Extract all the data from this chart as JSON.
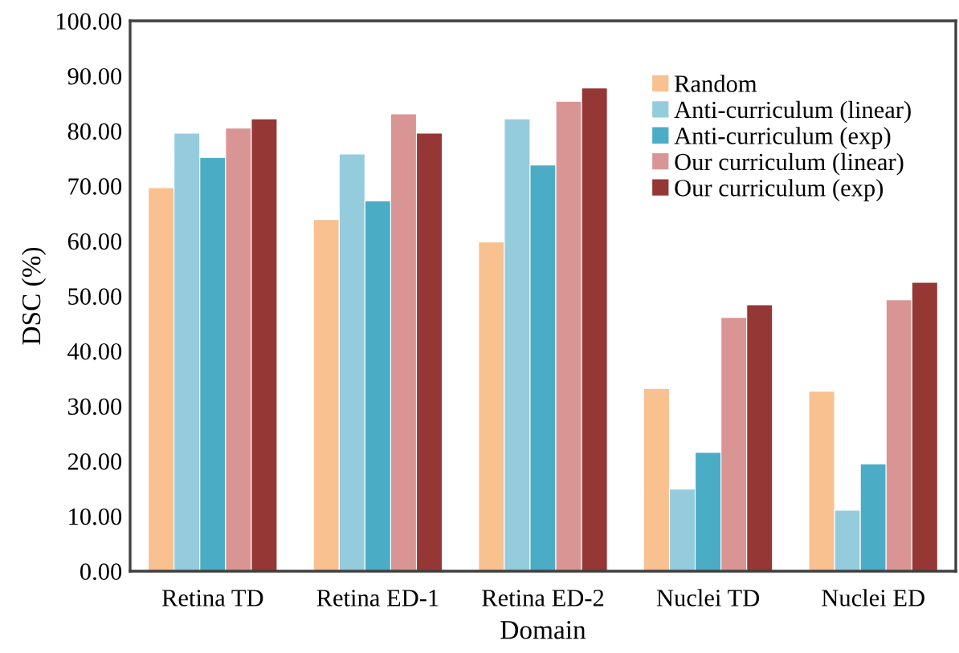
{
  "chart_data": {
    "type": "bar",
    "xlabel": "Domain",
    "ylabel": "DSC (%)",
    "categories": [
      "Retina TD",
      "Retina ED-1",
      "Retina ED-2",
      "Nuclei TD",
      "Nuclei ED"
    ],
    "series": [
      {
        "name": "Random",
        "color": "#f9c090",
        "values": [
          69.7,
          63.9,
          59.8,
          33.2,
          32.7
        ]
      },
      {
        "name": "Anti-curriculum (linear)",
        "color": "#95ccdd",
        "values": [
          79.6,
          75.8,
          82.2,
          14.9,
          11.1
        ]
      },
      {
        "name": "Anti-curriculum (exp)",
        "color": "#4bacc6",
        "values": [
          75.2,
          67.3,
          73.8,
          21.6,
          19.5
        ]
      },
      {
        "name": "Our curriculum (linear)",
        "color": "#d99594",
        "values": [
          80.5,
          83.1,
          85.4,
          46.1,
          49.3
        ]
      },
      {
        "name": "Our curriculum (exp)",
        "color": "#953735",
        "values": [
          82.2,
          79.6,
          87.8,
          48.4,
          52.5
        ]
      }
    ],
    "ylim": [
      0,
      100
    ],
    "yticks": [
      {
        "value": 0,
        "label": "0.00"
      },
      {
        "value": 10,
        "label": "10.00"
      },
      {
        "value": 20,
        "label": "20.00"
      },
      {
        "value": 30,
        "label": "30.00"
      },
      {
        "value": 40,
        "label": "40.00"
      },
      {
        "value": 50,
        "label": "50.00"
      },
      {
        "value": 60,
        "label": "60.00"
      },
      {
        "value": 70,
        "label": "70.00"
      },
      {
        "value": 80,
        "label": "80.00"
      },
      {
        "value": 90,
        "label": "90.00"
      },
      {
        "value": 100,
        "label": "100.00"
      }
    ],
    "grid": false,
    "legend": "top right"
  }
}
